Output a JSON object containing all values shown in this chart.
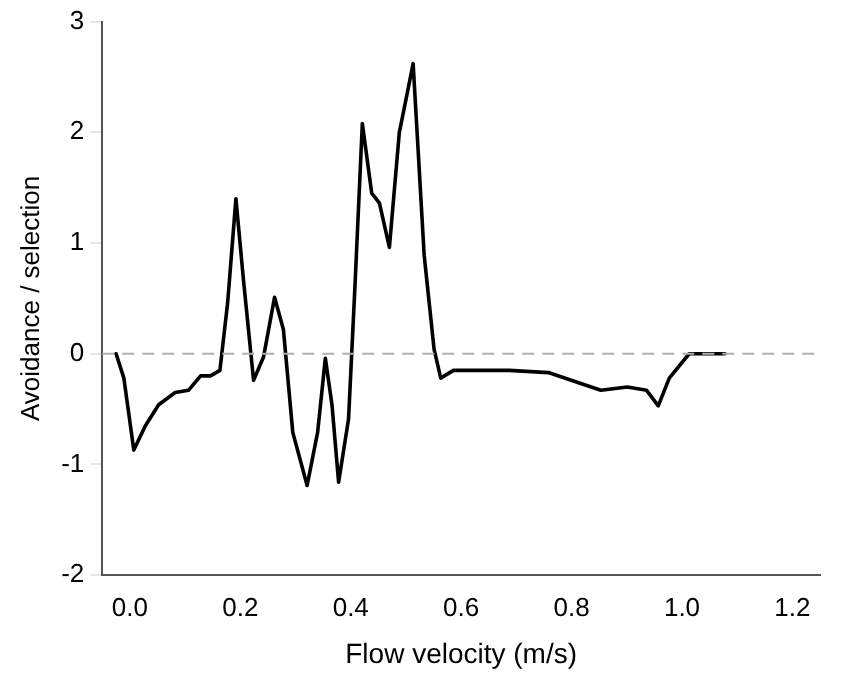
{
  "chart_data": {
    "type": "line",
    "xlabel": "Flow velocity (m/s)",
    "ylabel": "Avoidance / selection",
    "xlim": [
      -0.05,
      1.25
    ],
    "xticks": [
      {
        "value": 0,
        "label": "0.0"
      },
      {
        "value": 0.2,
        "label": "0.2"
      },
      {
        "value": 0.4,
        "label": "0.4"
      },
      {
        "value": 0.6,
        "label": "0.6"
      },
      {
        "value": 0.8,
        "label": "0.8"
      },
      {
        "value": 1,
        "label": "1.0"
      },
      {
        "value": 1.2,
        "label": "1.2"
      }
    ],
    "ylim": [
      -2,
      3
    ],
    "yticks": [
      -2,
      -1,
      0,
      1,
      2,
      3
    ],
    "grid": false,
    "legend": false,
    "marker": "none",
    "line_style": "solid",
    "ref_lines": [
      {
        "axis": "y",
        "value": 0,
        "color": "#b0b0b0",
        "line_style": "dashed"
      }
    ],
    "series": [
      {
        "color": "#000000",
        "x": [
          -0.025,
          -0.011,
          0.007,
          0.028,
          0.052,
          0.082,
          0.106,
          0.128,
          0.146,
          0.163,
          0.177,
          0.192,
          0.206,
          0.224,
          0.242,
          0.262,
          0.278,
          0.295,
          0.321,
          0.34,
          0.354,
          0.366,
          0.378,
          0.396,
          0.408,
          0.421,
          0.438,
          0.452,
          0.47,
          0.488,
          0.497,
          0.513,
          0.533,
          0.551,
          0.563,
          0.586,
          0.687,
          0.758,
          0.794,
          0.853,
          0.901,
          0.936,
          0.957,
          0.977,
          1.013,
          1.078
        ],
        "values": [
          0,
          -0.22,
          -0.87,
          -0.65,
          -0.46,
          -0.35,
          -0.33,
          -0.2,
          -0.2,
          -0.15,
          0.46,
          1.4,
          0.65,
          -0.24,
          -0.03,
          0.51,
          0.22,
          -0.71,
          -1.19,
          -0.71,
          -0.04,
          -0.46,
          -1.16,
          -0.59,
          0.65,
          2.08,
          1.45,
          1.36,
          0.96,
          2.0,
          2.22,
          2.62,
          0.89,
          0.04,
          -0.22,
          -0.15,
          -0.15,
          -0.17,
          -0.23,
          -0.33,
          -0.3,
          -0.33,
          -0.47,
          -0.22,
          0,
          0
        ]
      }
    ]
  }
}
